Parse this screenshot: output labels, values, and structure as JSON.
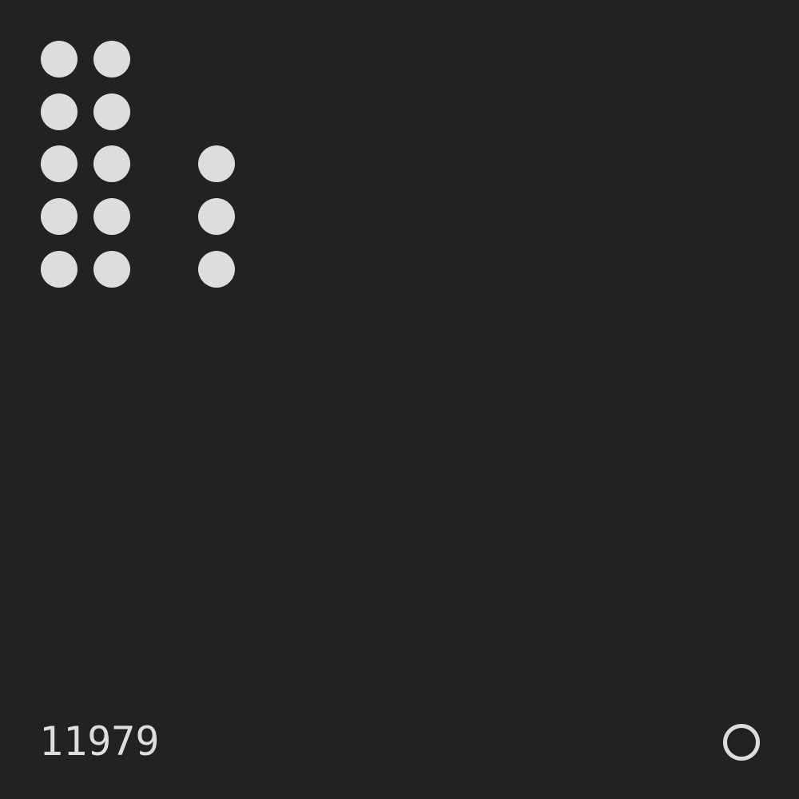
{
  "background_color": "#222222",
  "foreground_color": "#dddddd",
  "dot_pattern": {
    "rows": 5,
    "columns": 4,
    "filled": [
      [
        true,
        true,
        false,
        false
      ],
      [
        true,
        true,
        false,
        false
      ],
      [
        true,
        true,
        false,
        true
      ],
      [
        true,
        true,
        false,
        true
      ],
      [
        true,
        true,
        false,
        true
      ]
    ]
  },
  "footer": {
    "number": "11979",
    "indicator_icon": "ring-icon"
  }
}
